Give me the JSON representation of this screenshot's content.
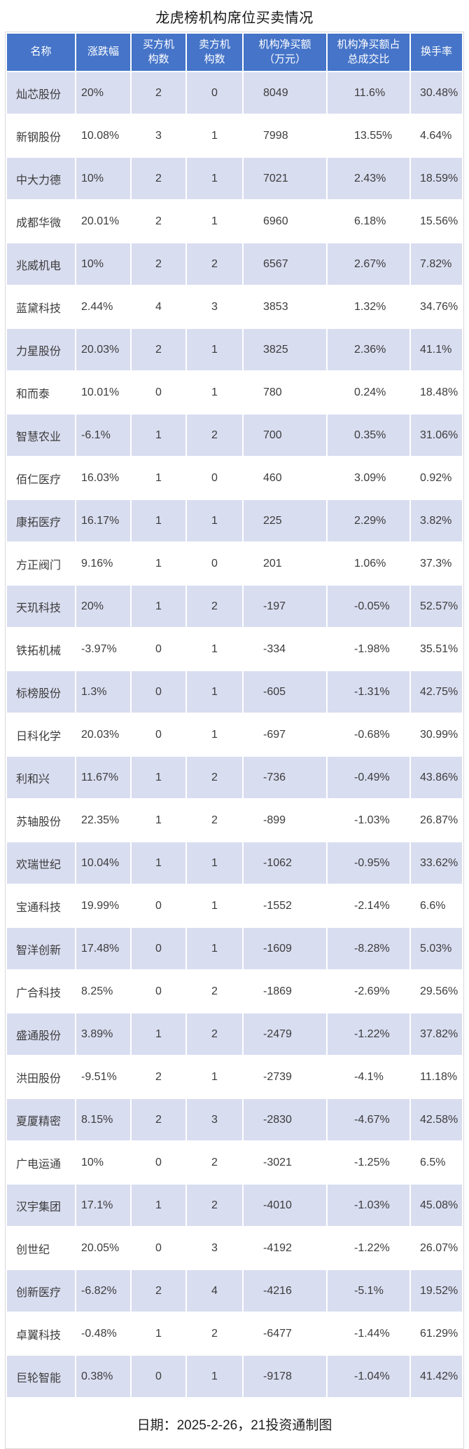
{
  "title": "龙虎榜机构席位买卖情况",
  "footer": {
    "text": "日期：2025-2-26，21投资通制图"
  },
  "colors": {
    "header_bg": "#4574c8",
    "header_text": "#ffffff",
    "row_alt_bg": "#d9ddf0",
    "row_bg": "#ffffff",
    "data_text": "#3c3c3c"
  },
  "chart_data": {
    "type": "table",
    "title": "龙虎榜机构席位买卖情况",
    "columns": [
      "名称",
      "涨跌幅",
      "买方机构数",
      "卖方机构数",
      "机构净买额（万元）",
      "机构净买额占总成交比",
      "换手率"
    ],
    "rows": [
      [
        "灿芯股份",
        "20%",
        "2",
        "0",
        "8049",
        "11.6%",
        "30.48%"
      ],
      [
        "新钢股份",
        "10.08%",
        "3",
        "1",
        "7998",
        "13.55%",
        "4.64%"
      ],
      [
        "中大力德",
        "10%",
        "2",
        "1",
        "7021",
        "2.43%",
        "18.59%"
      ],
      [
        "成都华微",
        "20.01%",
        "2",
        "1",
        "6960",
        "6.18%",
        "15.56%"
      ],
      [
        "兆威机电",
        "10%",
        "2",
        "2",
        "6567",
        "2.67%",
        "7.82%"
      ],
      [
        "蓝黛科技",
        "2.44%",
        "4",
        "3",
        "3853",
        "1.32%",
        "34.76%"
      ],
      [
        "力星股份",
        "20.03%",
        "2",
        "1",
        "3825",
        "2.36%",
        "41.1%"
      ],
      [
        "和而泰",
        "10.01%",
        "0",
        "1",
        "780",
        "0.24%",
        "18.48%"
      ],
      [
        "智慧农业",
        "-6.1%",
        "1",
        "2",
        "700",
        "0.35%",
        "31.06%"
      ],
      [
        "佰仁医疗",
        "16.03%",
        "1",
        "0",
        "460",
        "3.09%",
        "0.92%"
      ],
      [
        "康拓医疗",
        "16.17%",
        "1",
        "1",
        "225",
        "2.29%",
        "3.82%"
      ],
      [
        "方正阀门",
        "9.16%",
        "1",
        "0",
        "201",
        "1.06%",
        "37.3%"
      ],
      [
        "天玑科技",
        "20%",
        "1",
        "2",
        "-197",
        "-0.05%",
        "52.57%"
      ],
      [
        "铁拓机械",
        "-3.97%",
        "0",
        "1",
        "-334",
        "-1.98%",
        "35.51%"
      ],
      [
        "标榜股份",
        "1.3%",
        "0",
        "1",
        "-605",
        "-1.31%",
        "42.75%"
      ],
      [
        "日科化学",
        "20.03%",
        "0",
        "1",
        "-697",
        "-0.68%",
        "30.99%"
      ],
      [
        "利和兴",
        "11.67%",
        "1",
        "2",
        "-736",
        "-0.49%",
        "43.86%"
      ],
      [
        "苏轴股份",
        "22.35%",
        "1",
        "2",
        "-899",
        "-1.03%",
        "26.87%"
      ],
      [
        "欢瑞世纪",
        "10.04%",
        "1",
        "1",
        "-1062",
        "-0.95%",
        "33.62%"
      ],
      [
        "宝通科技",
        "19.99%",
        "0",
        "1",
        "-1552",
        "-2.14%",
        "6.6%"
      ],
      [
        "智洋创新",
        "17.48%",
        "0",
        "1",
        "-1609",
        "-8.28%",
        "5.03%"
      ],
      [
        "广合科技",
        "8.25%",
        "0",
        "2",
        "-1869",
        "-2.69%",
        "29.56%"
      ],
      [
        "盛通股份",
        "3.89%",
        "1",
        "2",
        "-2479",
        "-1.22%",
        "37.82%"
      ],
      [
        "洪田股份",
        "-9.51%",
        "2",
        "1",
        "-2739",
        "-4.1%",
        "11.18%"
      ],
      [
        "夏厦精密",
        "8.15%",
        "2",
        "3",
        "-2830",
        "-4.67%",
        "42.58%"
      ],
      [
        "广电运通",
        "10%",
        "0",
        "2",
        "-3021",
        "-1.25%",
        "6.5%"
      ],
      [
        "汉宇集团",
        "17.1%",
        "1",
        "2",
        "-4010",
        "-1.03%",
        "45.08%"
      ],
      [
        "创世纪",
        "20.05%",
        "0",
        "3",
        "-4192",
        "-1.22%",
        "26.07%"
      ],
      [
        "创新医疗",
        "-6.82%",
        "2",
        "4",
        "-4216",
        "-5.1%",
        "19.52%"
      ],
      [
        "卓翼科技",
        "-0.48%",
        "1",
        "2",
        "-6477",
        "-1.44%",
        "61.29%"
      ],
      [
        "巨轮智能",
        "0.38%",
        "0",
        "1",
        "-9178",
        "-1.04%",
        "41.42%"
      ]
    ]
  },
  "table": {
    "columns": [
      {
        "key": "name",
        "label": "名称"
      },
      {
        "key": "change-pct",
        "label": "涨跌幅"
      },
      {
        "key": "buyer-inst-count",
        "label": "买方机\n构数"
      },
      {
        "key": "seller-inst-count",
        "label": "卖方机\n构数"
      },
      {
        "key": "net-buy-amount",
        "label": "机构净买额\n（万元）"
      },
      {
        "key": "net-buy-ratio",
        "label": "机构净买额占\n总成交比"
      },
      {
        "key": "turnover-rate",
        "label": "换手率"
      }
    ]
  }
}
